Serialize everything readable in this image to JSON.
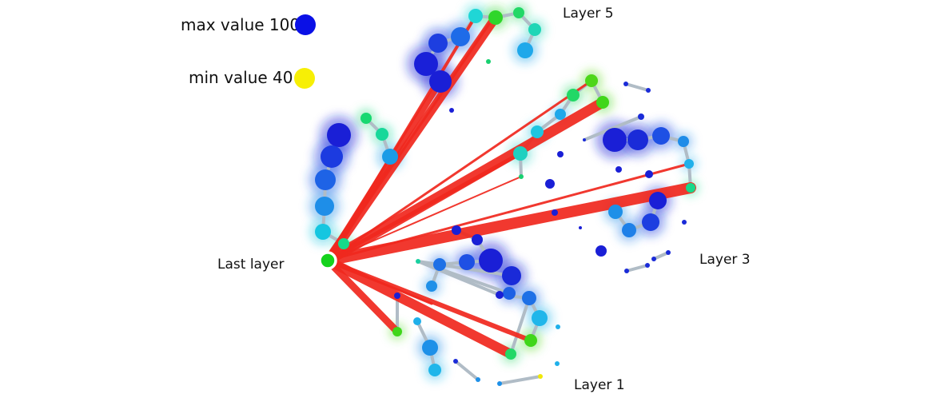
{
  "legend": {
    "max_label": "max value 100",
    "min_label": "min value 40",
    "max_color": "#0a10e6",
    "min_color": "#f7ef05"
  },
  "labels": {
    "last_layer": "Last layer",
    "layer_1": "Layer 1",
    "layer_3": "Layer 3",
    "layer_5": "Layer 5"
  },
  "colors": {
    "edge": "#f0281e",
    "link": "#b0bcc6",
    "root": "#15d21d",
    "glow": "rgba(60,120,255,0.35)"
  }
}
